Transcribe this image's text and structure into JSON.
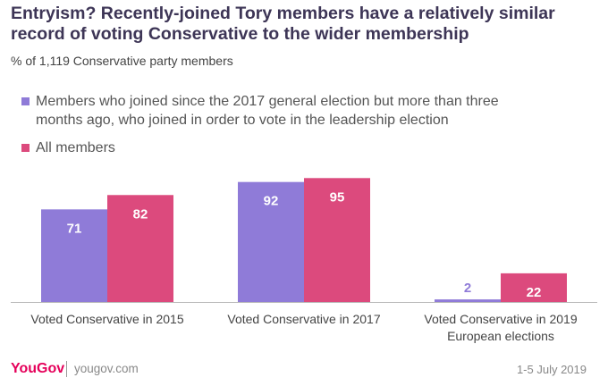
{
  "title": "Entryism? Recently-joined Tory members have a relatively similar record of voting Conservative to the wider membership",
  "subtitle": "% of 1,119 Conservative party members",
  "colors": {
    "series1": "#8f7bd8",
    "series2": "#dc4a7d",
    "title": "#3d3556"
  },
  "chart_data": {
    "type": "bar",
    "title": "Entryism? Recently-joined Tory members have a relatively similar record of voting Conservative to the wider membership",
    "subtitle": "% of 1,119 Conservative party members",
    "categories": [
      [
        "Voted Conservative in 2015"
      ],
      [
        "Voted Conservative in 2017"
      ],
      [
        "Voted Conservative in 2019",
        "European elections"
      ]
    ],
    "series": [
      {
        "name": "Members who joined since the 2017 general election but more than three months ago, who joined in order to vote in the leadership election",
        "legend_lines": [
          "Members who joined since the 2017 general election but more than three",
          "months ago, who joined in order to vote in the leadership election"
        ],
        "values": [
          71,
          92,
          2
        ]
      },
      {
        "name": "All members",
        "legend_lines": [
          "All members"
        ],
        "values": [
          82,
          95,
          22
        ]
      }
    ],
    "ylim": [
      0,
      100
    ],
    "grid": false,
    "legend": "top-left"
  },
  "footer": {
    "brand": "YouGov",
    "url": "yougov.com",
    "date": "1-5 July 2019"
  }
}
